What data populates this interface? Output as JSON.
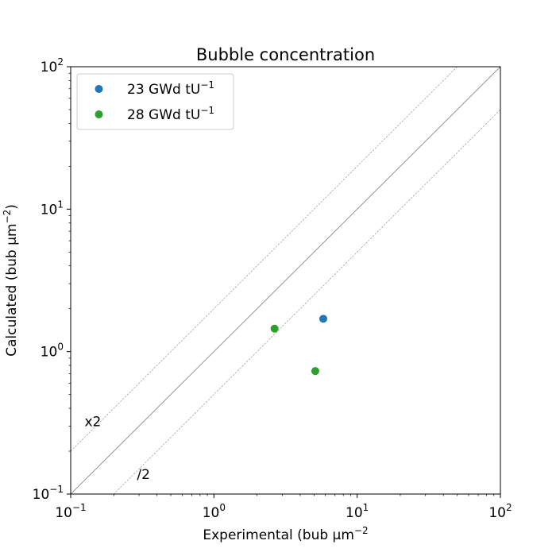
{
  "chart_data": {
    "type": "scatter",
    "title": "Bubble concentration",
    "xlabel": "Experimental (bub μm",
    "xlabel_sup": "−2",
    "ylabel": "Calculated (bub μm",
    "ylabel_sup": "−2",
    "ylabel_close": ")",
    "xscale": "log",
    "yscale": "log",
    "xlim": [
      0.1,
      100
    ],
    "ylim": [
      0.1,
      100
    ],
    "grid": false,
    "legend_position": "upper-left",
    "x_ticks": [
      {
        "value": 0.1,
        "base": "10",
        "exp": "−1"
      },
      {
        "value": 1,
        "base": "10",
        "exp": "0"
      },
      {
        "value": 10,
        "base": "10",
        "exp": "1"
      },
      {
        "value": 100,
        "base": "10",
        "exp": "2"
      }
    ],
    "y_ticks": [
      {
        "value": 0.1,
        "base": "10",
        "exp": "−1"
      },
      {
        "value": 1,
        "base": "10",
        "exp": "0"
      },
      {
        "value": 10,
        "base": "10",
        "exp": "1"
      },
      {
        "value": 100,
        "base": "10",
        "exp": "2"
      }
    ],
    "series": [
      {
        "name": "23 GWd tU",
        "name_sup": "−1",
        "color": "#1f77b4",
        "points": [
          {
            "x": 5.8,
            "y": 1.7
          }
        ]
      },
      {
        "name": "28 GWd tU",
        "name_sup": "−1",
        "color": "#2ca02c",
        "points": [
          {
            "x": 2.65,
            "y": 1.45
          },
          {
            "x": 5.1,
            "y": 0.73
          }
        ]
      }
    ],
    "reference_lines": [
      {
        "factor": 1,
        "style": "solid",
        "color": "#888888"
      },
      {
        "factor": 2,
        "style": "dashed",
        "color": "#888888",
        "label": "x2",
        "label_pos": {
          "x": 0.125,
          "y": 0.3
        }
      },
      {
        "factor": 0.5,
        "style": "dashed",
        "color": "#888888",
        "label": "/2",
        "label_pos": {
          "x": 0.29,
          "y": 0.128
        }
      }
    ]
  }
}
